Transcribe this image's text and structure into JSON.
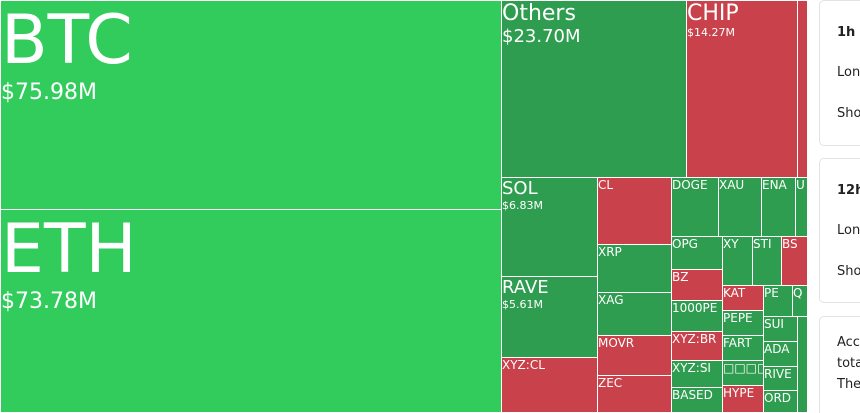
{
  "tiles": [
    {
      "label": "BTC",
      "value": "$75.98M",
      "color": "#31cc5c"
    },
    {
      "label": "ETH",
      "value": "$73.78M",
      "color": "#31cc5c"
    },
    {
      "label": "Others",
      "value": "$23.70M",
      "color": "#2e9d4f"
    },
    {
      "label": "CHIP",
      "value": "$14.27M",
      "color": "#c9414a"
    },
    {
      "label": "SOL",
      "value": "$6.83M",
      "color": "#2e9d4f"
    },
    {
      "label": "RAVE",
      "value": "$5.61M",
      "color": "#2e9d4f"
    },
    {
      "label": "XYZ:CL",
      "color": "#c9414a"
    },
    {
      "label": "CL",
      "color": "#c9414a"
    },
    {
      "label": "XRP",
      "color": "#2e9d4f"
    },
    {
      "label": "XAG",
      "color": "#2e9d4f"
    },
    {
      "label": "MOVR",
      "color": "#c9414a"
    },
    {
      "label": "ZEC",
      "color": "#c9414a"
    },
    {
      "label": "DOGE",
      "color": "#2e9d4f"
    },
    {
      "label": "XAU",
      "color": "#2e9d4f"
    },
    {
      "label": "ENA",
      "color": "#2e9d4f"
    },
    {
      "label": "U",
      "color": "#2e9d4f"
    },
    {
      "label": "OPG",
      "color": "#2e9d4f"
    },
    {
      "label": "BZ",
      "color": "#c9414a"
    },
    {
      "label": "1000PE",
      "color": "#2e9d4f"
    },
    {
      "label": "XYZ:BR",
      "color": "#c9414a"
    },
    {
      "label": "XYZ:SI",
      "color": "#2e9d4f"
    },
    {
      "label": "BASED",
      "color": "#2e9d4f"
    },
    {
      "label": "XY",
      "color": "#2e9d4f"
    },
    {
      "label": "STI",
      "color": "#2e9d4f"
    },
    {
      "label": "BS",
      "color": "#c9414a"
    },
    {
      "label": "KAT",
      "color": "#c9414a"
    },
    {
      "label": "PEPE",
      "color": "#2e9d4f"
    },
    {
      "label": "FART",
      "color": "#2e9d4f"
    },
    {
      "label": "□□□□",
      "color": "#2e9d4f"
    },
    {
      "label": "HYPE",
      "color": "#c9414a"
    },
    {
      "label": "PE",
      "color": "#2e9d4f"
    },
    {
      "label": "Q",
      "color": "#2e9d4f"
    },
    {
      "label": "SUI",
      "color": "#2e9d4f"
    },
    {
      "label": "ADA",
      "color": "#2e9d4f"
    },
    {
      "label": "RIVE",
      "color": "#2e9d4f"
    },
    {
      "label": "ORD",
      "color": "#2e9d4f"
    },
    {
      "color": "#c9414a"
    },
    {
      "color": "#2e9d4f"
    }
  ],
  "cards": [
    {
      "title": "1h",
      "lines": [
        "Lon",
        "Sho"
      ]
    },
    {
      "title": "12h",
      "lines": [
        "Lon",
        "Sho"
      ]
    },
    {
      "lines": [
        "Acc",
        "tota",
        "The"
      ]
    }
  ]
}
